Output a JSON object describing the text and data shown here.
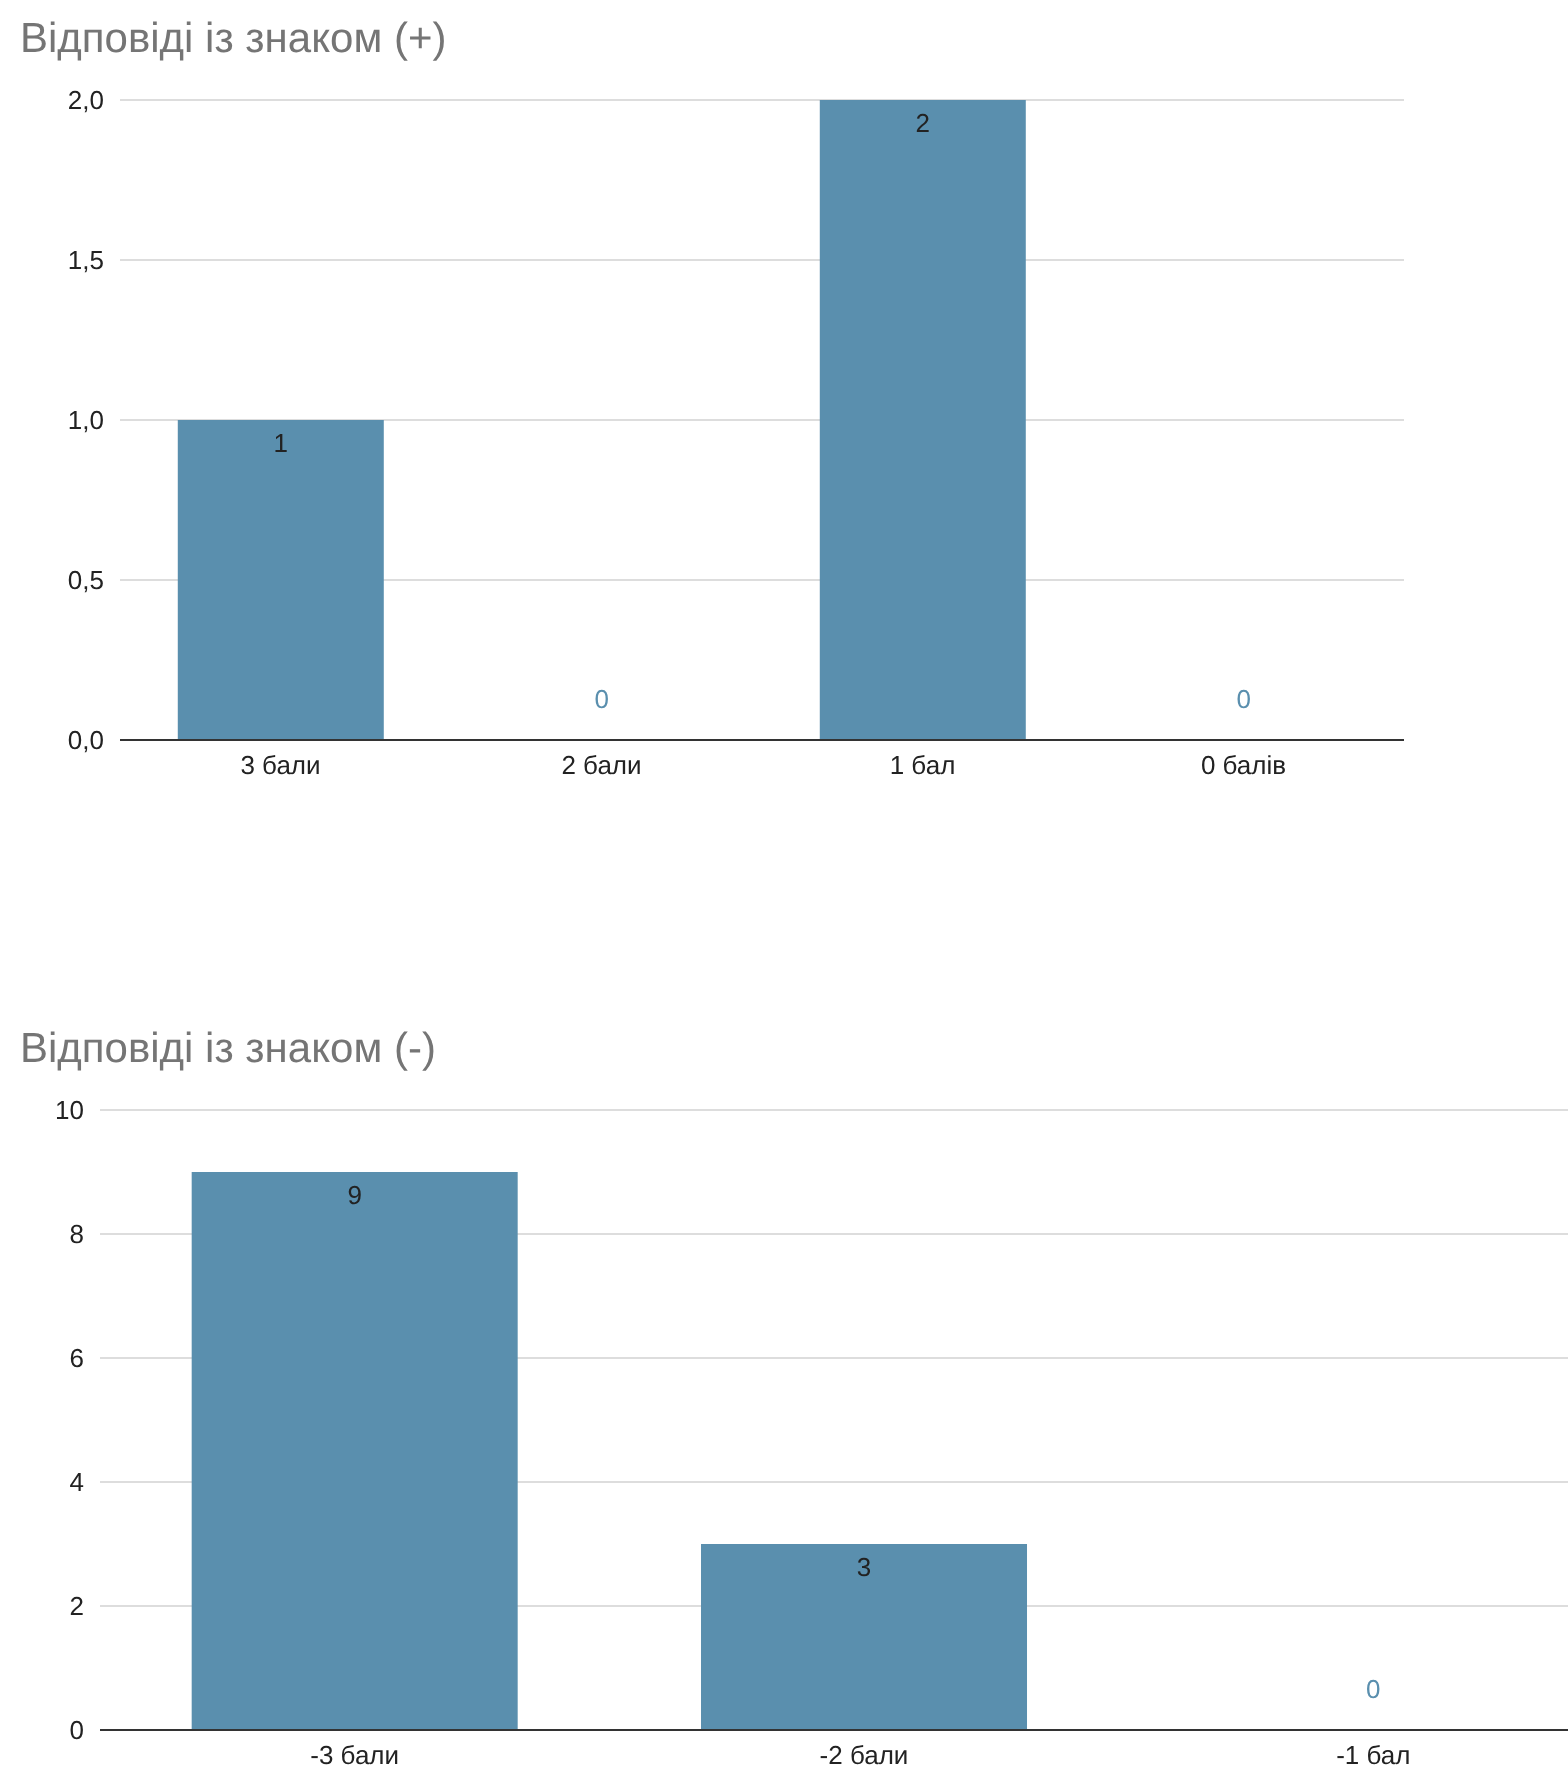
{
  "chart_data": [
    {
      "type": "bar",
      "title": "Відповіді із знаком (+)",
      "categories": [
        "3 бали",
        "2 бали",
        "1 бал",
        "0 балів"
      ],
      "values": [
        1,
        0,
        2,
        0
      ],
      "color": "#5a8fae",
      "ylim": [
        0,
        2
      ],
      "yticks": [
        {
          "value": 0,
          "label": "0,0"
        },
        {
          "value": 0.5,
          "label": "0,5"
        },
        {
          "value": 1,
          "label": "1,0"
        },
        {
          "value": 1.5,
          "label": "1,5"
        },
        {
          "value": 2,
          "label": "2,0"
        }
      ],
      "grid": "y",
      "data_labels": true,
      "legend": false
    },
    {
      "type": "bar",
      "title": "Відповіді із знаком (-)",
      "categories": [
        "-3 бали",
        "-2 бали",
        "-1 бал"
      ],
      "values": [
        9,
        3,
        0
      ],
      "color": "#5a8fae",
      "ylim": [
        0,
        10
      ],
      "yticks": [
        0,
        2,
        4,
        6,
        8,
        10
      ],
      "grid": "y",
      "data_labels": true,
      "legend": false
    }
  ]
}
